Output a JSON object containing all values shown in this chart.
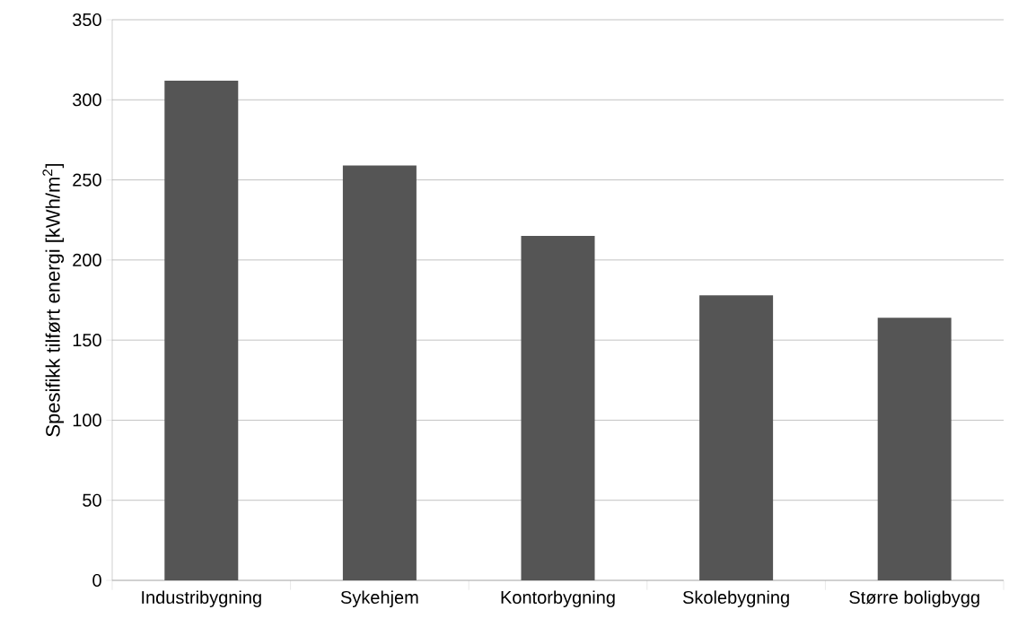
{
  "chart_data": {
    "type": "bar",
    "ylabel": "Spesifikk tilført energi [kWh/m$^{2}$]",
    "categories": [
      "Industribygning",
      "Sykehjem",
      "Kontorbygning",
      "Skolebygning",
      "Større boligbygg"
    ],
    "values": [
      312,
      259,
      215,
      178,
      164
    ],
    "color": "#555555",
    "ylim": [
      0,
      350
    ],
    "yticks": [
      0,
      50,
      100,
      150,
      200,
      250,
      300,
      350
    ],
    "grid": "y"
  }
}
